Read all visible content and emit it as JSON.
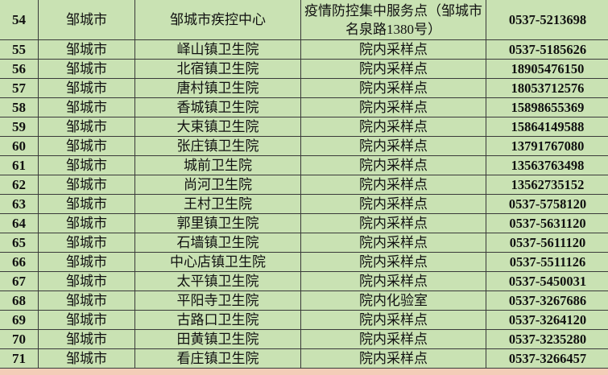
{
  "rows": [
    {
      "no": "54",
      "city": "邹城市",
      "org": "邹城市疾控中心",
      "site": "疫情防控集中服务点（邹城市名泉路1380号）",
      "phone": "0537-5213698"
    },
    {
      "no": "55",
      "city": "邹城市",
      "org": "峄山镇卫生院",
      "site": "院内采样点",
      "phone": "0537-5185626"
    },
    {
      "no": "56",
      "city": "邹城市",
      "org": "北宿镇卫生院",
      "site": "院内采样点",
      "phone": "18905476150"
    },
    {
      "no": "57",
      "city": "邹城市",
      "org": "唐村镇卫生院",
      "site": "院内采样点",
      "phone": "18053712576"
    },
    {
      "no": "58",
      "city": "邹城市",
      "org": "香城镇卫生院",
      "site": "院内采样点",
      "phone": "15898655369"
    },
    {
      "no": "59",
      "city": "邹城市",
      "org": "大束镇卫生院",
      "site": "院内采样点",
      "phone": "15864149588"
    },
    {
      "no": "60",
      "city": "邹城市",
      "org": "张庄镇卫生院",
      "site": "院内采样点",
      "phone": "13791767080"
    },
    {
      "no": "61",
      "city": "邹城市",
      "org": "城前卫生院",
      "site": "院内采样点",
      "phone": "13563763498"
    },
    {
      "no": "62",
      "city": "邹城市",
      "org": "尚河卫生院",
      "site": "院内采样点",
      "phone": "13562735152"
    },
    {
      "no": "63",
      "city": "邹城市",
      "org": "王村卫生院",
      "site": "院内采样点",
      "phone": "0537-5758120"
    },
    {
      "no": "64",
      "city": "邹城市",
      "org": "郭里镇卫生院",
      "site": "院内采样点",
      "phone": "0537-5631120"
    },
    {
      "no": "65",
      "city": "邹城市",
      "org": "石墙镇卫生院",
      "site": "院内采样点",
      "phone": "0537-5611120"
    },
    {
      "no": "66",
      "city": "邹城市",
      "org": "中心店镇卫生院",
      "site": "院内采样点",
      "phone": "0537-5511126"
    },
    {
      "no": "67",
      "city": "邹城市",
      "org": "太平镇卫生院",
      "site": "院内采样点",
      "phone": "0537-5450031"
    },
    {
      "no": "68",
      "city": "邹城市",
      "org": "平阳寺卫生院",
      "site": "院内化验室",
      "phone": "0537-3267686"
    },
    {
      "no": "69",
      "city": "邹城市",
      "org": "古路口卫生院",
      "site": "院内采样点",
      "phone": "0537-3264120"
    },
    {
      "no": "70",
      "city": "邹城市",
      "org": "田黄镇卫生院",
      "site": "院内采样点",
      "phone": "0537-3235280"
    },
    {
      "no": "71",
      "city": "邹城市",
      "org": "看庄镇卫生院",
      "site": "院内采样点",
      "phone": "0537-3266457"
    }
  ],
  "colors": {
    "table_bg": "#c9e2b3",
    "border": "#3a3a3a",
    "below_table": "#f3cdb8"
  }
}
